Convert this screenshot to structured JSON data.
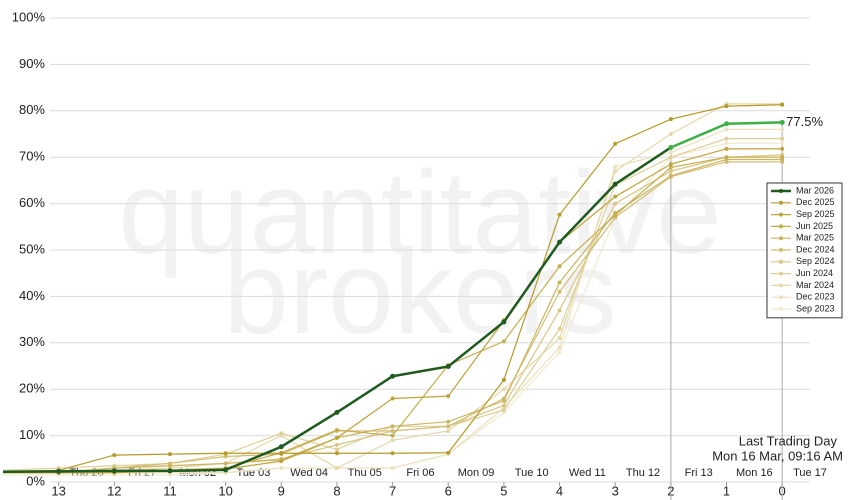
{
  "chart_data": {
    "type": "line",
    "watermark": [
      "quantitative",
      "brokers"
    ],
    "x": [
      14,
      13,
      12,
      11,
      10,
      9,
      8,
      7,
      6,
      5,
      4,
      3,
      2,
      1,
      0
    ],
    "xlim": [
      14,
      -0.5
    ],
    "xticks": [
      13,
      12,
      11,
      10,
      9,
      8,
      7,
      6,
      5,
      4,
      3,
      2,
      1,
      0
    ],
    "date_labels": [
      "Thu 26",
      "Fri 27",
      "Mon 02",
      "Tue 03",
      "Wed 04",
      "Thu 05",
      "Fri 06",
      "Mon 09",
      "Tue 10",
      "Wed 11",
      "Thu 12",
      "Fri 13",
      "Mon 16",
      "Tue 17"
    ],
    "ylim": [
      0,
      100
    ],
    "yticks": [
      {
        "value": 0,
        "label": "0%"
      },
      {
        "value": 10,
        "label": "10%"
      },
      {
        "value": 20,
        "label": "20%"
      },
      {
        "value": 30,
        "label": "30%"
      },
      {
        "value": 40,
        "label": "40%"
      },
      {
        "value": 50,
        "label": "50%"
      },
      {
        "value": 60,
        "label": "60%"
      },
      {
        "value": 70,
        "label": "70%"
      },
      {
        "value": 80,
        "label": "80%"
      },
      {
        "value": 90,
        "label": "90%"
      },
      {
        "value": 100,
        "label": "100%"
      }
    ],
    "grid": true,
    "legend": "right",
    "vlines": [
      2,
      0
    ],
    "highlight_color": "#3cb043",
    "end_label": "77.5%",
    "annotation": [
      "Last Trading Day",
      "Mon 16 Mar, 09:16 AM"
    ],
    "series": [
      {
        "name": "Mar 2026",
        "color": "#1f5a1f",
        "values": [
          2.2,
          2.3,
          2.4,
          2.4,
          2.6,
          7.6,
          15,
          22.8,
          24.9,
          34.5,
          51.7,
          64.2,
          72.1,
          77.2,
          77.5
        ]
      },
      {
        "name": "Dec 2025",
        "color": "#b59a2a",
        "values": [
          2.3,
          2.5,
          5.8,
          6,
          6.2,
          6.2,
          6.2,
          6.2,
          6.3,
          22,
          57.6,
          72.9,
          78.2,
          81,
          81.3
        ]
      },
      {
        "name": "Sep 2025",
        "color": "#bfa43a",
        "values": [
          2,
          2,
          2,
          2.4,
          2.8,
          4.5,
          9.5,
          18,
          18.5,
          34.8,
          51.7,
          61.5,
          68.5,
          71.8,
          71.8
        ]
      },
      {
        "name": "Jun 2025",
        "color": "#c6ad4e",
        "values": [
          2,
          2,
          2.5,
          2.6,
          3,
          6.3,
          11.2,
          10,
          25.2,
          30.3,
          46.5,
          57.5,
          67.8,
          70,
          70
        ]
      },
      {
        "name": "Mar 2025",
        "color": "#ccb560",
        "values": [
          2,
          2,
          3,
          3.5,
          4,
          4.8,
          9.5,
          12,
          13,
          17.5,
          43,
          58,
          66,
          69.5,
          69.5
        ]
      },
      {
        "name": "Dec 2024",
        "color": "#d3bd72",
        "values": [
          2,
          2,
          3,
          4,
          5.5,
          6,
          11,
          11,
          12,
          18,
          41,
          57,
          65.8,
          69,
          69
        ]
      },
      {
        "name": "Sep 2024",
        "color": "#d9c684",
        "values": [
          2,
          2,
          3,
          3.5,
          4,
          5,
          8,
          11,
          12,
          16.5,
          37,
          60,
          67,
          70,
          70.5
        ]
      },
      {
        "name": "Jun 2024",
        "color": "#dfcf97",
        "values": [
          2.5,
          3,
          3.5,
          4,
          6,
          10.5,
          7,
          12,
          12,
          15.5,
          33,
          64,
          70,
          74,
          74
        ]
      },
      {
        "name": "Mar 2024",
        "color": "#e5d8aa",
        "values": [
          2,
          2.5,
          2.5,
          3,
          4,
          10,
          3,
          9,
          11,
          20,
          31,
          67,
          75,
          81.5,
          81.5
        ]
      },
      {
        "name": "Dec 2023",
        "color": "#ebe1bd",
        "values": [
          2,
          2,
          2,
          2,
          2,
          3,
          3,
          3,
          6,
          16,
          29,
          68,
          71,
          76,
          76
        ]
      },
      {
        "name": "Sep 2023",
        "color": "#f0e9cf",
        "values": [
          1.5,
          1.5,
          1.5,
          1.5,
          2,
          3,
          3,
          3,
          6,
          15,
          28,
          57,
          70,
          73,
          73
        ]
      }
    ]
  }
}
